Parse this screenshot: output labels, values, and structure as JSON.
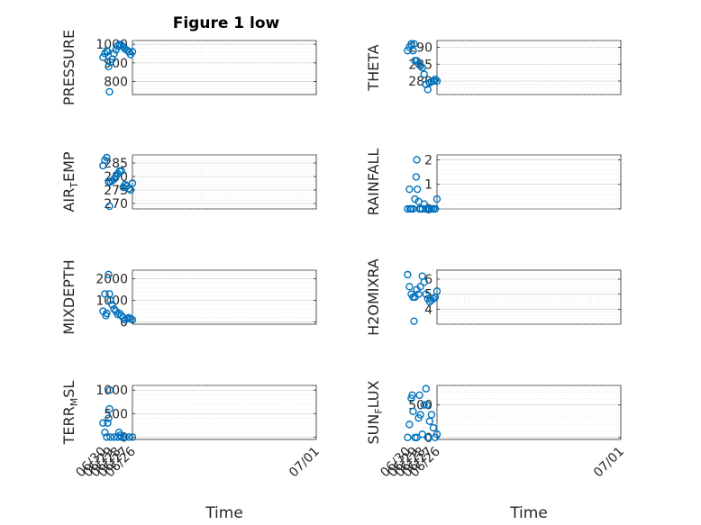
{
  "figure": {
    "title": "Figure 1 low",
    "marker_color": "#0072BD"
  },
  "chart_data": [
    {
      "type": "scatter",
      "ylabel": "PRESSURE",
      "ylim": [
        730,
        1020
      ],
      "yticks": [
        800,
        900,
        1000
      ],
      "xlim": [
        "06/26",
        "07/01"
      ],
      "xticks": [],
      "xlabel": "",
      "x": [
        "06/26 00:00",
        "06/26 06:00",
        "06/26 12:00",
        "06/26 18:00",
        "06/27 00:00",
        "06/27 06:00",
        "06/27 12:00",
        "06/27 18:00",
        "06/28 00:00",
        "06/28 06:00",
        "06/28 12:00",
        "06/28 18:00",
        "06/29 00:00",
        "06/29 03:00",
        "06/29 06:00",
        "06/29 09:00",
        "06/29 12:00",
        "06/29 18:00",
        "06/30 00:00"
      ],
      "y": [
        960,
        945,
        960,
        968,
        975,
        985,
        995,
        1000,
        990,
        970,
        950,
        920,
        905,
        745,
        880,
        960,
        965,
        950,
        930
      ]
    },
    {
      "type": "scatter",
      "ylabel": "THETA",
      "ylim": [
        276,
        292
      ],
      "yticks": [
        280,
        285,
        290
      ],
      "xlim": [
        "06/26",
        "07/01"
      ],
      "xticks": [],
      "xlabel": "",
      "x": [
        "06/26 00:00",
        "06/26 06:00",
        "06/26 12:00",
        "06/26 18:00",
        "06/27 00:00",
        "06/27 06:00",
        "06/27 12:00",
        "06/27 18:00",
        "06/28 00:00",
        "06/28 06:00",
        "06/28 12:00",
        "06/28 18:00",
        "06/29 00:00",
        "06/29 03:00",
        "06/29 06:00",
        "06/29 12:00",
        "06/29 18:00",
        "06/30 00:00"
      ],
      "y": [
        280,
        280.5,
        280,
        279.8,
        279.5,
        277.5,
        279,
        282,
        284,
        284.5,
        285,
        286,
        286,
        291,
        289,
        291,
        290,
        289
      ]
    },
    {
      "type": "scatter",
      "ylabel": "AIR_TEMP",
      "ylim": [
        268,
        288
      ],
      "yticks": [
        270,
        275,
        280,
        285
      ],
      "xlim": [
        "06/26",
        "07/01"
      ],
      "xticks": [],
      "xlabel": "",
      "x": [
        "06/26 00:00",
        "06/26 06:00",
        "06/26 12:00",
        "06/26 18:00",
        "06/27 00:00",
        "06/27 06:00",
        "06/27 12:00",
        "06/27 18:00",
        "06/28 00:00",
        "06/28 06:00",
        "06/28 12:00",
        "06/28 18:00",
        "06/29 00:00",
        "06/29 03:00",
        "06/29 06:00",
        "06/29 12:00",
        "06/29 18:00",
        "06/30 00:00"
      ],
      "y": [
        277.5,
        275,
        275.5,
        276.5,
        277,
        276,
        282,
        282,
        281,
        280,
        279,
        278.5,
        278,
        269,
        278,
        287,
        286,
        284
      ]
    },
    {
      "type": "scatter",
      "ylabel": "RAINFALL",
      "ylim": [
        0,
        2.2
      ],
      "yticks": [
        0,
        1,
        2
      ],
      "xlim": [
        "06/26",
        "07/01"
      ],
      "xticks": [],
      "xlabel": "",
      "x": [
        "06/26 00:00",
        "06/26 06:00",
        "06/26 12:00",
        "06/26 18:00",
        "06/27 00:00",
        "06/27 06:00",
        "06/27 12:00",
        "06/27 18:00",
        "06/28 00:00",
        "06/28 06:00",
        "06/28 09:00",
        "06/28 12:00",
        "06/28 16:00",
        "06/28 18:00",
        "06/28 20:00",
        "06/29 00:00",
        "06/29 06:00",
        "06/29 12:00",
        "06/29 16:00",
        "06/29 18:00",
        "06/30 00:00"
      ],
      "y": [
        0.4,
        0,
        0,
        0,
        0,
        0,
        0,
        0.2,
        0,
        0,
        0,
        0.3,
        0.8,
        2,
        1.3,
        0.4,
        0,
        0,
        0,
        0.8,
        0
      ]
    },
    {
      "type": "scatter",
      "ylabel": "MIXDEPTH",
      "ylim": [
        -100,
        2400
      ],
      "yticks": [
        0,
        1000,
        2000
      ],
      "xlim": [
        "06/26",
        "07/01"
      ],
      "xticks": [],
      "xlabel": "",
      "x": [
        "06/26 00:00",
        "06/26 06:00",
        "06/26 12:00",
        "06/26 18:00",
        "06/27 00:00",
        "06/27 06:00",
        "06/27 12:00",
        "06/27 18:00",
        "06/28 00:00",
        "06/28 06:00",
        "06/28 12:00",
        "06/28 18:00",
        "06/29 00:00",
        "06/29 03:00",
        "06/29 06:00",
        "06/29 12:00",
        "06/29 15:00",
        "06/29 18:00",
        "06/30 00:00"
      ],
      "y": [
        100,
        150,
        200,
        150,
        100,
        200,
        300,
        400,
        350,
        500,
        600,
        800,
        1000,
        1300,
        2200,
        400,
        300,
        1300,
        500
      ]
    },
    {
      "type": "scatter",
      "ylabel": "H2OMIXRA",
      "ylim": [
        3,
        6.6
      ],
      "yticks": [
        4,
        5,
        6
      ],
      "xlim": [
        "06/26",
        "07/01"
      ],
      "xticks": [],
      "xlabel": "",
      "x": [
        "06/26 00:00",
        "06/26 06:00",
        "06/26 12:00",
        "06/26 18:00",
        "06/27 00:00",
        "06/27 06:00",
        "06/27 12:00",
        "06/27 18:00",
        "06/28 00:00",
        "06/28 06:00",
        "06/28 12:00",
        "06/28 18:00",
        "06/29 00:00",
        "06/29 03:00",
        "06/29 06:00",
        "06/29 12:00",
        "06/29 18:00",
        "06/30 00:00"
      ],
      "y": [
        5.2,
        4.8,
        4.7,
        4.6,
        4.5,
        4.7,
        5,
        5.8,
        6.2,
        5.5,
        5,
        5.3,
        4.8,
        3.2,
        4.8,
        5,
        5.5,
        6.3
      ]
    },
    {
      "type": "scatter",
      "ylabel": "TERR_MSL",
      "ylim": [
        -50,
        1100
      ],
      "yticks": [
        0,
        500,
        1000
      ],
      "xlim": [
        "06/26",
        "07/01"
      ],
      "xticks": [
        "06/26",
        "06/27",
        "06/28",
        "06/29",
        "06/30",
        "07/01"
      ],
      "xlabel": "Time",
      "x": [
        "06/26 00:00",
        "06/26 12:00",
        "06/27 00:00",
        "06/27 12:00",
        "06/27 16:00",
        "06/27 20:00",
        "06/28 00:00",
        "06/28 12:00",
        "06/29 00:00",
        "06/29 02:00",
        "06/29 03:00",
        "06/29 06:00",
        "06/29 09:00",
        "06/29 12:00",
        "06/29 18:00",
        "06/30 00:00"
      ],
      "y": [
        0,
        0,
        0,
        0,
        40,
        100,
        0,
        0,
        0,
        1000,
        600,
        400,
        300,
        0,
        100,
        300
      ]
    },
    {
      "type": "scatter",
      "ylabel": "SUN_FLUX",
      "ylim": [
        -30,
        800
      ],
      "yticks": [
        0,
        500
      ],
      "xlim": [
        "06/26",
        "07/01"
      ],
      "xticks": [
        "06/26",
        "06/27",
        "06/28",
        "06/29",
        "06/30",
        "07/01"
      ],
      "xlabel": "Time",
      "x": [
        "06/26 00:00",
        "06/26 06:00",
        "06/26 12:00",
        "06/26 18:00",
        "06/27 00:00",
        "06/27 06:00",
        "06/27 09:00",
        "06/27 12:00",
        "06/27 18:00",
        "06/28 00:00",
        "06/28 06:00",
        "06/28 09:00",
        "06/28 12:00",
        "06/28 18:00",
        "06/29 00:00",
        "06/29 06:00",
        "06/29 09:00",
        "06/29 12:00",
        "06/29 18:00",
        "06/30 00:00"
      ],
      "y": [
        50,
        0,
        150,
        350,
        250,
        0,
        500,
        750,
        500,
        50,
        350,
        650,
        300,
        0,
        0,
        400,
        650,
        600,
        200,
        0
      ]
    }
  ]
}
